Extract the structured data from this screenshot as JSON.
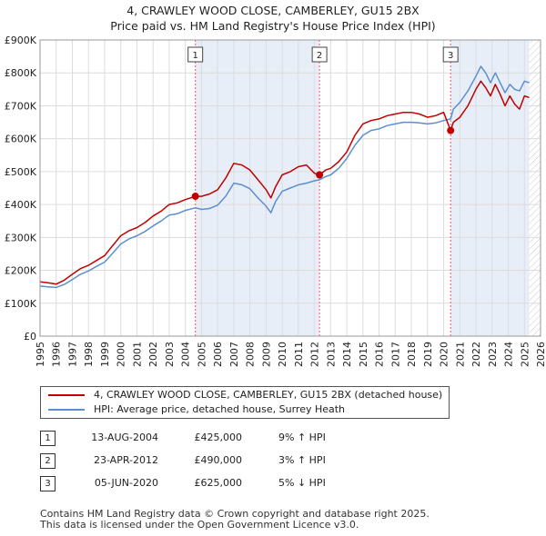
{
  "title": {
    "line1": "4, CRAWLEY WOOD CLOSE, CAMBERLEY, GU15 2BX",
    "line2": "Price paid vs. HM Land Registry's House Price Index (HPI)"
  },
  "colors": {
    "property": "#c00000",
    "hpi": "#5b8fd0",
    "shade": "#e8eef8",
    "grid": "#dcdcdc",
    "marker_line": "#e06060"
  },
  "chart_data": {
    "type": "line",
    "title": "4, CRAWLEY WOOD CLOSE, CAMBERLEY, GU15 2BX — Price paid vs. HM Land Registry's House Price Index (HPI)",
    "xlim": [
      1995,
      2026
    ],
    "ylim": [
      0,
      900000
    ],
    "x_ticks": [
      1995,
      1996,
      1997,
      1998,
      1999,
      2000,
      2001,
      2002,
      2003,
      2004,
      2005,
      2006,
      2007,
      2008,
      2009,
      2010,
      2011,
      2012,
      2013,
      2014,
      2015,
      2016,
      2017,
      2018,
      2019,
      2020,
      2021,
      2022,
      2023,
      2024,
      2025,
      2026
    ],
    "x_tick_labels": [
      "1995",
      "1996",
      "1997",
      "1998",
      "1999",
      "2000",
      "2001",
      "2002",
      "2003",
      "2004",
      "2005",
      "2006",
      "2007",
      "2008",
      "2009",
      "2010",
      "2011",
      "2012",
      "2013",
      "2014",
      "2015",
      "2016",
      "2017",
      "2018",
      "2019",
      "2020",
      "2021",
      "2022",
      "2023",
      "2024",
      "2025",
      "2026"
    ],
    "y_ticks": [
      0,
      100000,
      200000,
      300000,
      400000,
      500000,
      600000,
      700000,
      800000,
      900000
    ],
    "y_tick_labels": [
      "£0",
      "£100K",
      "£200K",
      "£300K",
      "£400K",
      "£500K",
      "£600K",
      "£700K",
      "£800K",
      "£900K"
    ],
    "grid": true,
    "legend_position": "below",
    "series": [
      {
        "name": "4, CRAWLEY WOOD CLOSE, CAMBERLEY, GU15 2BX (detached house)",
        "color": "#c00000",
        "x": [
          1995.0,
          1995.5,
          1996.0,
          1996.5,
          1997.0,
          1997.5,
          1998.0,
          1998.5,
          1999.0,
          1999.5,
          2000.0,
          2000.5,
          2001.0,
          2001.5,
          2002.0,
          2002.5,
          2003.0,
          2003.5,
          2004.0,
          2004.62,
          2005.0,
          2005.5,
          2006.0,
          2006.5,
          2007.0,
          2007.5,
          2008.0,
          2008.5,
          2009.0,
          2009.3,
          2009.6,
          2010.0,
          2010.5,
          2011.0,
          2011.5,
          2012.0,
          2012.31,
          2012.7,
          2013.0,
          2013.5,
          2014.0,
          2014.5,
          2015.0,
          2015.5,
          2016.0,
          2016.5,
          2017.0,
          2017.5,
          2018.0,
          2018.5,
          2019.0,
          2019.5,
          2020.0,
          2020.43,
          2020.6,
          2021.0,
          2021.5,
          2022.0,
          2022.3,
          2022.6,
          2022.9,
          2023.2,
          2023.5,
          2023.8,
          2024.1,
          2024.4,
          2024.7,
          2025.0,
          2025.3
        ],
        "values": [
          165000,
          162000,
          158000,
          170000,
          188000,
          205000,
          215000,
          230000,
          245000,
          275000,
          305000,
          320000,
          330000,
          345000,
          365000,
          380000,
          400000,
          405000,
          415000,
          425000,
          425000,
          432000,
          445000,
          480000,
          525000,
          520000,
          505000,
          475000,
          445000,
          420000,
          455000,
          490000,
          500000,
          515000,
          520000,
          495000,
          490000,
          505000,
          510000,
          530000,
          560000,
          610000,
          645000,
          655000,
          660000,
          670000,
          675000,
          680000,
          680000,
          675000,
          665000,
          670000,
          680000,
          625000,
          650000,
          665000,
          700000,
          750000,
          775000,
          755000,
          730000,
          765000,
          735000,
          700000,
          730000,
          705000,
          690000,
          730000,
          725000
        ]
      },
      {
        "name": "HPI: Average price, detached house, Surrey Heath",
        "color": "#5b8fd0",
        "x": [
          1995.0,
          1995.5,
          1996.0,
          1996.5,
          1997.0,
          1997.5,
          1998.0,
          1998.5,
          1999.0,
          1999.5,
          2000.0,
          2000.5,
          2001.0,
          2001.5,
          2002.0,
          2002.5,
          2003.0,
          2003.5,
          2004.0,
          2004.62,
          2005.0,
          2005.5,
          2006.0,
          2006.5,
          2007.0,
          2007.5,
          2008.0,
          2008.5,
          2009.0,
          2009.3,
          2009.6,
          2010.0,
          2010.5,
          2011.0,
          2011.5,
          2012.0,
          2012.31,
          2012.7,
          2013.0,
          2013.5,
          2014.0,
          2014.5,
          2015.0,
          2015.5,
          2016.0,
          2016.5,
          2017.0,
          2017.5,
          2018.0,
          2018.5,
          2019.0,
          2019.5,
          2020.0,
          2020.43,
          2020.6,
          2021.0,
          2021.5,
          2022.0,
          2022.3,
          2022.6,
          2022.9,
          2023.2,
          2023.5,
          2023.8,
          2024.1,
          2024.4,
          2024.7,
          2025.0,
          2025.3
        ],
        "values": [
          152000,
          150000,
          148000,
          157000,
          172000,
          188000,
          198000,
          212000,
          225000,
          252000,
          280000,
          295000,
          305000,
          318000,
          335000,
          350000,
          368000,
          372000,
          382000,
          390000,
          385000,
          388000,
          398000,
          425000,
          465000,
          460000,
          448000,
          420000,
          395000,
          375000,
          410000,
          440000,
          450000,
          460000,
          465000,
          472000,
          475000,
          485000,
          490000,
          510000,
          540000,
          580000,
          610000,
          625000,
          630000,
          640000,
          645000,
          650000,
          650000,
          648000,
          645000,
          648000,
          655000,
          660000,
          690000,
          710000,
          745000,
          790000,
          820000,
          800000,
          770000,
          800000,
          770000,
          740000,
          765000,
          750000,
          745000,
          775000,
          770000
        ]
      }
    ],
    "sales": [
      {
        "label": "1",
        "x": 2004.62,
        "value": 425000
      },
      {
        "label": "2",
        "x": 2012.31,
        "value": 490000
      },
      {
        "label": "3",
        "x": 2020.43,
        "value": 625000
      }
    ],
    "shaded_regions": [
      {
        "from": 2004.62,
        "to": 2012.31
      },
      {
        "from": 2020.43,
        "to": 2025.3
      }
    ],
    "hatched_region": {
      "from": 2025.3,
      "to": 2026
    }
  },
  "legend": {
    "property_label": "4, CRAWLEY WOOD CLOSE, CAMBERLEY, GU15 2BX (detached house)",
    "hpi_label": "HPI: Average price, detached house, Surrey Heath"
  },
  "sales_table": [
    {
      "num": "1",
      "date": "13-AUG-2004",
      "price": "£425,000",
      "hpi": "9% ↑ HPI"
    },
    {
      "num": "2",
      "date": "23-APR-2012",
      "price": "£490,000",
      "hpi": "3% ↑ HPI"
    },
    {
      "num": "3",
      "date": "05-JUN-2020",
      "price": "£625,000",
      "hpi": "5% ↓ HPI"
    }
  ],
  "footer": {
    "line1": "Contains HM Land Registry data © Crown copyright and database right 2025.",
    "line2": "This data is licensed under the Open Government Licence v3.0."
  }
}
